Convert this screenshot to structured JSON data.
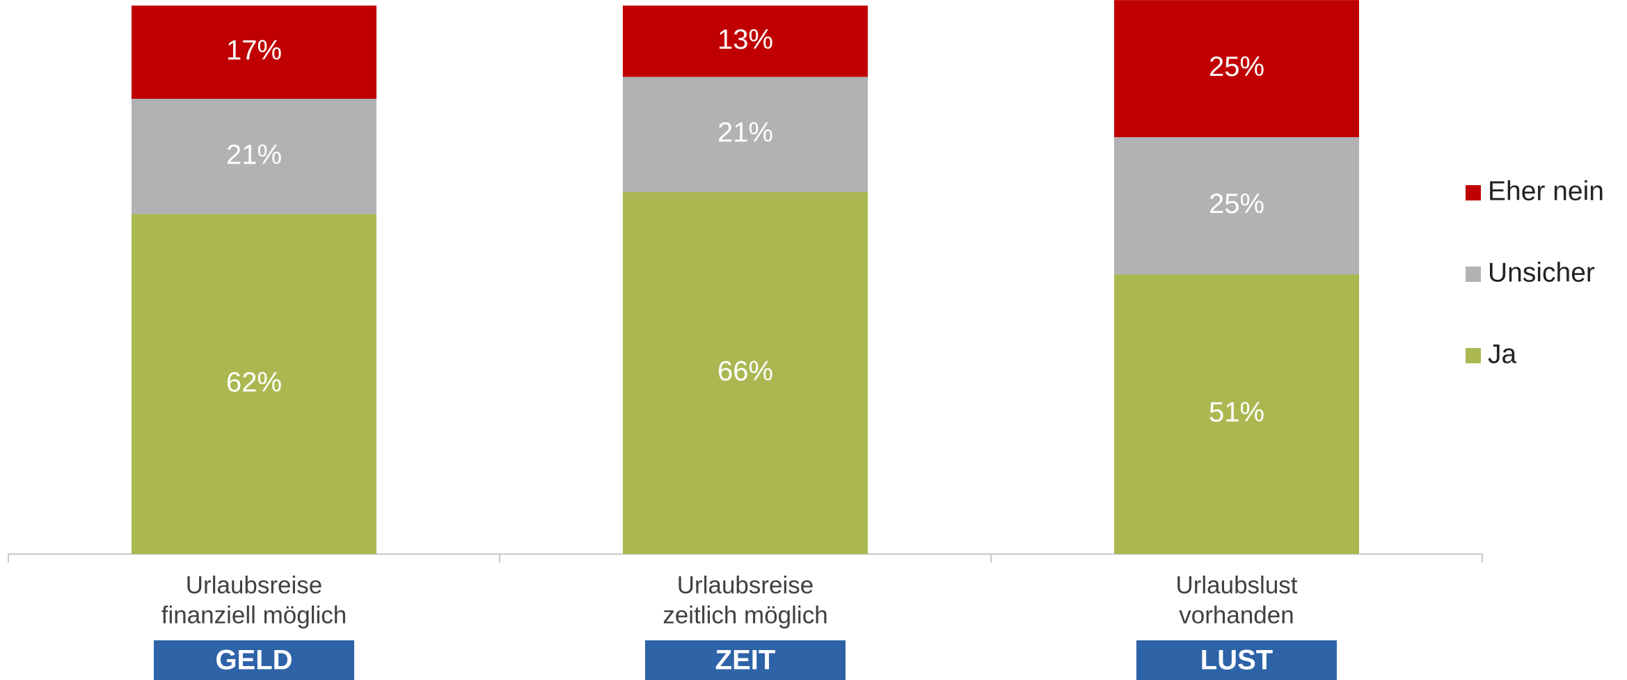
{
  "chart_data": {
    "type": "stacked_bar",
    "categories": [
      [
        "Urlaubsreise",
        "finanziell möglich"
      ],
      [
        "Urlaubsreise",
        "zeitlich möglich"
      ],
      [
        "Urlaubslust",
        "vorhanden"
      ]
    ],
    "badges": [
      "GELD",
      "ZEIT",
      "LUST"
    ],
    "series": [
      {
        "name": "Ja",
        "color": "#abb852",
        "values": [
          62,
          66,
          51
        ],
        "value_labels": [
          "62%",
          "66%",
          "51%"
        ]
      },
      {
        "name": "Unsicher",
        "color": "#b1b2b4",
        "values": [
          21,
          21,
          25
        ],
        "value_labels": [
          "21%",
          "21%",
          "25%"
        ]
      },
      {
        "name": "Eher nein",
        "color": "#c00000",
        "values": [
          17,
          13,
          25
        ],
        "value_labels": [
          "17%",
          "13%",
          "25%"
        ]
      }
    ],
    "ylim": [
      0,
      100
    ],
    "legend": "right"
  }
}
